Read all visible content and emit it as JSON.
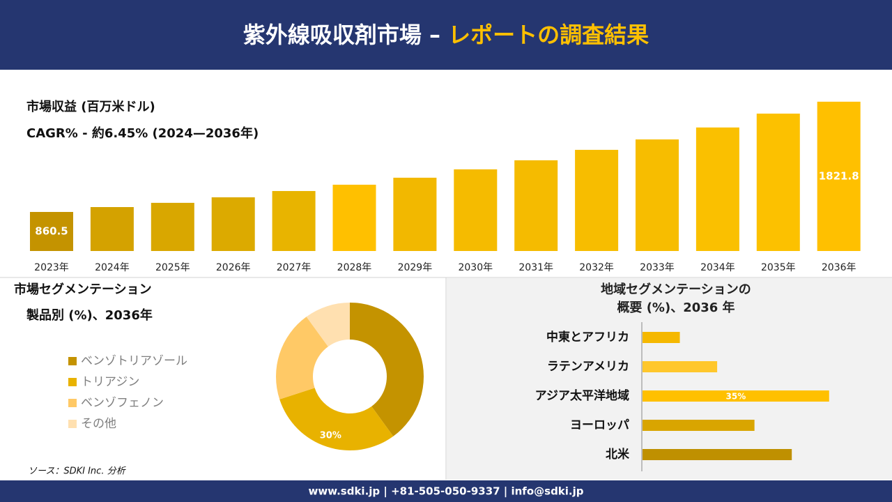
{
  "header": {
    "title": "紫外線吸収剤市場 – ",
    "title_highlight": "レポートの調査結果"
  },
  "footer": "www.sdki.jp | +81-505-050-9337 | info@sdki.jp",
  "source": "ソース：SDKI Inc. 分析",
  "chart_data": [
    {
      "type": "bar",
      "title": "市場収益 (百万米ドル)",
      "subtitle": "CAGR% - 約6.45% (2024—2036年)",
      "categories": [
        "2023年",
        "2024年",
        "2025年",
        "2026年",
        "2027年",
        "2028年",
        "2029年",
        "2030年",
        "2031年",
        "2032年",
        "2033年",
        "2034年",
        "2035年",
        "2036年"
      ],
      "values": [
        860.5,
        903,
        940,
        988,
        1043,
        1098,
        1159,
        1232,
        1311,
        1402,
        1493,
        1597,
        1718,
        1821.8
      ],
      "colors": [
        "#c49300",
        "#d4a200",
        "#d9a700",
        "#dcaa00",
        "#e8b400",
        "#ffc000",
        "#f2b800",
        "#f5bb00",
        "#f5bb00",
        "#f7bd00",
        "#f7bd00",
        "#fac000",
        "#fcc100",
        "#ffc000"
      ],
      "ylim": [
        520,
        1900
      ]
    },
    {
      "type": "donut",
      "title": "市場セグメンテーション",
      "subtitle": "製品別 (%)、2036年",
      "categories": [
        "ベンゾトリアゾール",
        "トリアジン",
        "ベンゾフェノン",
        "その他"
      ],
      "values": [
        40,
        30,
        20,
        10
      ],
      "value_labels": [
        null,
        "30%",
        null,
        null
      ],
      "colors": [
        "#c49300",
        "#e8b200",
        "#ffc966",
        "#ffe0b0"
      ]
    },
    {
      "type": "hbar",
      "title": [
        "地域セグメンテーションの",
        "概要 (%)、2036 年"
      ],
      "categories": [
        "中東とアフリカ",
        "ラテンアメリカ",
        "アジア太平洋地域",
        "ヨーロッパ",
        "北米"
      ],
      "values": [
        7,
        14,
        35,
        21,
        28
      ],
      "value_labels": [
        null,
        null,
        "35%",
        null,
        null
      ],
      "colors": [
        "#f5b800",
        "#ffc72c",
        "#ffc000",
        "#d9a500",
        "#bf9000"
      ],
      "xlim": [
        0,
        40
      ]
    }
  ]
}
